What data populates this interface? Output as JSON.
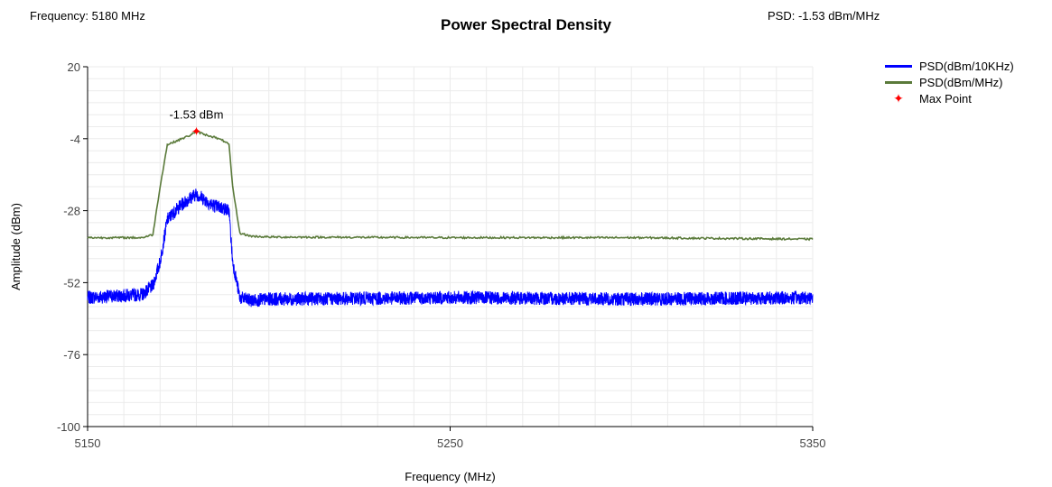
{
  "header": {
    "frequency_readout": "Frequency: 5180 MHz",
    "psd_readout": "PSD: -1.53 dBm/MHz"
  },
  "chart_data": {
    "type": "line",
    "title": "Power Spectral Density",
    "xlabel": "Frequency (MHz)",
    "ylabel": "Amplitude (dBm)",
    "xlim": [
      5150,
      5350
    ],
    "ylim": [
      -100,
      20
    ],
    "x_ticks": [
      5150,
      5250,
      5350
    ],
    "y_ticks": [
      20,
      -4,
      -28,
      -52,
      -76,
      -100
    ],
    "grid": true,
    "legend_position": "top-right",
    "series": [
      {
        "name": "PSD(dBm/10KHz)",
        "color": "#0000ff",
        "x": [
          5150,
          5165,
          5168,
          5170,
          5172,
          5175,
          5178,
          5180,
          5182,
          5184,
          5187,
          5189,
          5190,
          5192,
          5195,
          5200,
          5250,
          5300,
          5350
        ],
        "y": [
          -57,
          -56,
          -53,
          -45,
          -31,
          -27,
          -24,
          -22.5,
          -24,
          -26,
          -27,
          -28,
          -45,
          -57,
          -58,
          -57.5,
          -57,
          -57.5,
          -57
        ]
      },
      {
        "name": "PSD(dBm/MHz)",
        "color": "#5a7a3a",
        "x": [
          5150,
          5165,
          5168,
          5170,
          5172,
          5175,
          5178,
          5180,
          5182,
          5185,
          5188,
          5189,
          5190,
          5192,
          5195,
          5200,
          5250,
          5300,
          5350
        ],
        "y": [
          -37,
          -37,
          -36,
          -20,
          -6,
          -4.5,
          -3,
          -1.53,
          -2.5,
          -3.5,
          -5,
          -6,
          -20,
          -35.5,
          -36.5,
          -36.8,
          -37,
          -37,
          -37.5
        ]
      }
    ],
    "max_point": {
      "label": "Max Point",
      "x": 5180,
      "y": -1.53,
      "annotation": "-1.53 dBm",
      "color": "#ff0000"
    }
  }
}
